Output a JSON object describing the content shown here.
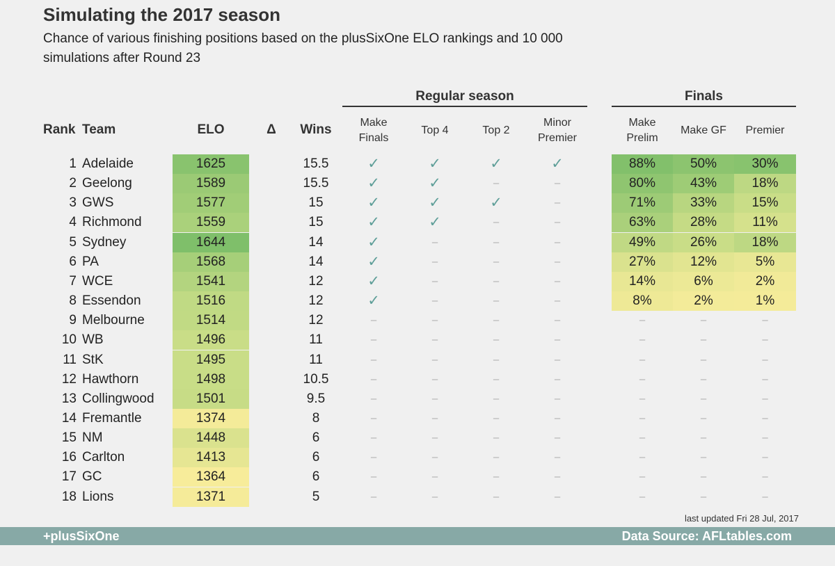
{
  "title": "Simulating the 2017 season",
  "subtitle": "Chance of various finishing positions based on the plusSixOne ELO rankings and 10 000 simulations after Round 23",
  "groups": {
    "regular": "Regular season",
    "finals": "Finals"
  },
  "headers": {
    "rank": "Rank",
    "team": "Team",
    "elo": "ELO",
    "delta": "Δ",
    "wins": "Wins",
    "make_finals_1": "Make",
    "make_finals_2": "Finals",
    "top4": "Top 4",
    "top2": "Top 2",
    "minor_1": "Minor",
    "minor_2": "Premier",
    "prelim_1": "Make",
    "prelim_2": "Prelim",
    "make_gf": "Make GF",
    "premier": "Premier"
  },
  "symbols": {
    "check": "✓",
    "dash": "–"
  },
  "colors": {
    "high": "#7fbf6a",
    "mid": "#c6dc86",
    "low": "#f7ec9a",
    "check": "#5e9e98",
    "footer": "#87a9a6"
  },
  "chart_data": {
    "type": "table",
    "columns": [
      "Rank",
      "Team",
      "ELO",
      "Δ",
      "Wins",
      "Make Finals",
      "Top 4",
      "Top 2",
      "Minor Premier",
      "Make Prelim",
      "Make GF",
      "Premier"
    ],
    "rows": [
      {
        "rank": "1",
        "team": "Adelaide",
        "elo": 1625,
        "wins": "15.5",
        "make_finals": true,
        "top4": true,
        "top2": true,
        "minor": true,
        "prelim": "88%",
        "gf": "50%",
        "premier": "30%"
      },
      {
        "rank": "2",
        "team": "Geelong",
        "elo": 1589,
        "wins": "15.5",
        "make_finals": true,
        "top4": true,
        "top2": false,
        "minor": false,
        "prelim": "80%",
        "gf": "43%",
        "premier": "18%"
      },
      {
        "rank": "3",
        "team": "GWS",
        "elo": 1577,
        "wins": "15",
        "make_finals": true,
        "top4": true,
        "top2": true,
        "minor": false,
        "prelim": "71%",
        "gf": "33%",
        "premier": "15%"
      },
      {
        "rank": "4",
        "team": "Richmond",
        "elo": 1559,
        "wins": "15",
        "make_finals": true,
        "top4": true,
        "top2": false,
        "minor": false,
        "prelim": "63%",
        "gf": "28%",
        "premier": "11%"
      },
      {
        "rank": "5",
        "team": "Sydney",
        "elo": 1644,
        "wins": "14",
        "make_finals": true,
        "top4": false,
        "top2": false,
        "minor": false,
        "prelim": "49%",
        "gf": "26%",
        "premier": "18%"
      },
      {
        "rank": "6",
        "team": "PA",
        "elo": 1568,
        "wins": "14",
        "make_finals": true,
        "top4": false,
        "top2": false,
        "minor": false,
        "prelim": "27%",
        "gf": "12%",
        "premier": "5%"
      },
      {
        "rank": "7",
        "team": "WCE",
        "elo": 1541,
        "wins": "12",
        "make_finals": true,
        "top4": false,
        "top2": false,
        "minor": false,
        "prelim": "14%",
        "gf": "6%",
        "premier": "2%"
      },
      {
        "rank": "8",
        "team": "Essendon",
        "elo": 1516,
        "wins": "12",
        "make_finals": true,
        "top4": false,
        "top2": false,
        "minor": false,
        "prelim": "8%",
        "gf": "2%",
        "premier": "1%"
      },
      {
        "rank": "9",
        "team": "Melbourne",
        "elo": 1514,
        "wins": "12",
        "make_finals": false,
        "top4": false,
        "top2": false,
        "minor": false,
        "prelim": null,
        "gf": null,
        "premier": null
      },
      {
        "rank": "10",
        "team": "WB",
        "elo": 1496,
        "wins": "11",
        "make_finals": false,
        "top4": false,
        "top2": false,
        "minor": false,
        "prelim": null,
        "gf": null,
        "premier": null
      },
      {
        "rank": "11",
        "team": "StK",
        "elo": 1495,
        "wins": "11",
        "make_finals": false,
        "top4": false,
        "top2": false,
        "minor": false,
        "prelim": null,
        "gf": null,
        "premier": null
      },
      {
        "rank": "12",
        "team": "Hawthorn",
        "elo": 1498,
        "wins": "10.5",
        "make_finals": false,
        "top4": false,
        "top2": false,
        "minor": false,
        "prelim": null,
        "gf": null,
        "premier": null
      },
      {
        "rank": "13",
        "team": "Collingwood",
        "elo": 1501,
        "wins": "9.5",
        "make_finals": false,
        "top4": false,
        "top2": false,
        "minor": false,
        "prelim": null,
        "gf": null,
        "premier": null
      },
      {
        "rank": "14",
        "team": "Fremantle",
        "elo": 1374,
        "wins": "8",
        "make_finals": false,
        "top4": false,
        "top2": false,
        "minor": false,
        "prelim": null,
        "gf": null,
        "premier": null
      },
      {
        "rank": "15",
        "team": "NM",
        "elo": 1448,
        "wins": "6",
        "make_finals": false,
        "top4": false,
        "top2": false,
        "minor": false,
        "prelim": null,
        "gf": null,
        "premier": null
      },
      {
        "rank": "16",
        "team": "Carlton",
        "elo": 1413,
        "wins": "6",
        "make_finals": false,
        "top4": false,
        "top2": false,
        "minor": false,
        "prelim": null,
        "gf": null,
        "premier": null
      },
      {
        "rank": "17",
        "team": "GC",
        "elo": 1364,
        "wins": "6",
        "make_finals": false,
        "top4": false,
        "top2": false,
        "minor": false,
        "prelim": null,
        "gf": null,
        "premier": null
      },
      {
        "rank": "18",
        "team": "Lions",
        "elo": 1371,
        "wins": "5",
        "make_finals": false,
        "top4": false,
        "top2": false,
        "minor": false,
        "prelim": null,
        "gf": null,
        "premier": null
      }
    ]
  },
  "footer": {
    "brand": "+plusSixOne",
    "source": "Data Source: AFLtables.com",
    "updated": "last updated Fri 28 Jul, 2017"
  }
}
